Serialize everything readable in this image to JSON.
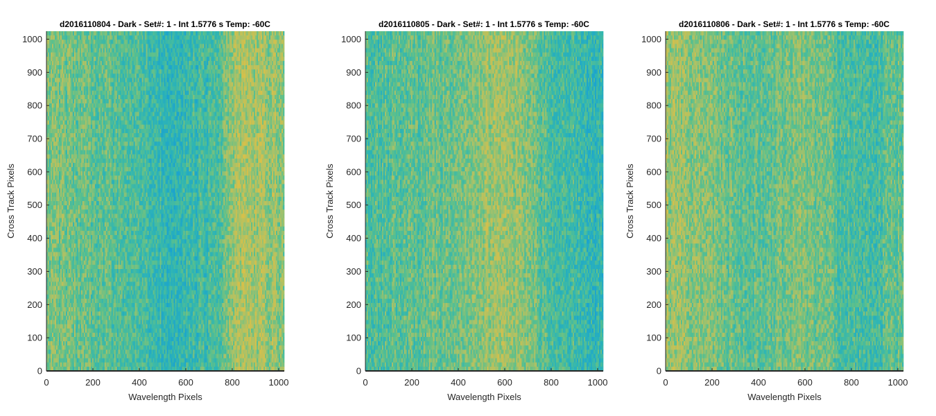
{
  "chart_data": [
    {
      "type": "heatmap",
      "title": "d2016110804 - Dark - Set#: 1 - Int 1.5776 s Temp: -60C",
      "xlabel": "Wavelength Pixels",
      "ylabel": "Cross Track Pixels",
      "xlim": [
        0,
        1024
      ],
      "ylim": [
        0,
        1024
      ],
      "xticks": [
        0,
        200,
        400,
        600,
        800,
        1000
      ],
      "yticks": [
        0,
        100,
        200,
        300,
        400,
        500,
        600,
        700,
        800,
        900,
        1000
      ],
      "colormap": [
        "#1aa2d0",
        "#2eb5b4",
        "#5cc08c",
        "#a9c168",
        "#d6c04a"
      ],
      "column_profile_x": [
        0,
        100,
        200,
        300,
        400,
        500,
        550,
        600,
        650,
        700,
        750,
        800,
        850,
        900,
        950,
        1000,
        1024
      ],
      "column_profile_level": [
        0.55,
        0.58,
        0.5,
        0.45,
        0.4,
        0.3,
        0.26,
        0.28,
        0.35,
        0.38,
        0.45,
        0.7,
        0.78,
        0.75,
        0.72,
        0.68,
        0.65
      ]
    },
    {
      "type": "heatmap",
      "title": "d2016110805 - Dark - Set#: 1 - Int 1.5776 s Temp: -60C",
      "xlabel": "Wavelength Pixels",
      "ylabel": "Cross Track Pixels",
      "xlim": [
        0,
        1024
      ],
      "ylim": [
        0,
        1024
      ],
      "xticks": [
        0,
        200,
        400,
        600,
        800,
        1000
      ],
      "yticks": [
        0,
        100,
        200,
        300,
        400,
        500,
        600,
        700,
        800,
        900,
        1000
      ],
      "colormap": [
        "#1aa2d0",
        "#2eb5b4",
        "#5cc08c",
        "#a9c168",
        "#d6c04a"
      ],
      "column_profile_x": [
        0,
        100,
        200,
        300,
        400,
        450,
        500,
        550,
        600,
        650,
        700,
        750,
        800,
        850,
        900,
        950,
        1000,
        1024
      ],
      "column_profile_level": [
        0.45,
        0.45,
        0.5,
        0.52,
        0.55,
        0.62,
        0.7,
        0.75,
        0.72,
        0.68,
        0.65,
        0.5,
        0.42,
        0.38,
        0.35,
        0.3,
        0.27,
        0.25
      ]
    },
    {
      "type": "heatmap",
      "title": "d2016110806 - Dark - Set#: 1 - Int 1.5776 s Temp: -60C",
      "xlabel": "Wavelength Pixels",
      "ylabel": "Cross Track Pixels",
      "xlim": [
        0,
        1024
      ],
      "ylim": [
        0,
        1024
      ],
      "xticks": [
        0,
        200,
        400,
        600,
        800,
        1000
      ],
      "yticks": [
        0,
        100,
        200,
        300,
        400,
        500,
        600,
        700,
        800,
        900,
        1000
      ],
      "colormap": [
        "#1aa2d0",
        "#2eb5b4",
        "#5cc08c",
        "#a9c168",
        "#d6c04a"
      ],
      "column_profile_x": [
        0,
        50,
        100,
        200,
        300,
        400,
        450,
        500,
        550,
        600,
        650,
        700,
        800,
        850,
        900,
        950,
        1000,
        1024
      ],
      "column_profile_level": [
        0.7,
        0.72,
        0.68,
        0.6,
        0.52,
        0.48,
        0.5,
        0.55,
        0.62,
        0.6,
        0.55,
        0.5,
        0.4,
        0.35,
        0.38,
        0.45,
        0.5,
        0.52
      ]
    }
  ]
}
